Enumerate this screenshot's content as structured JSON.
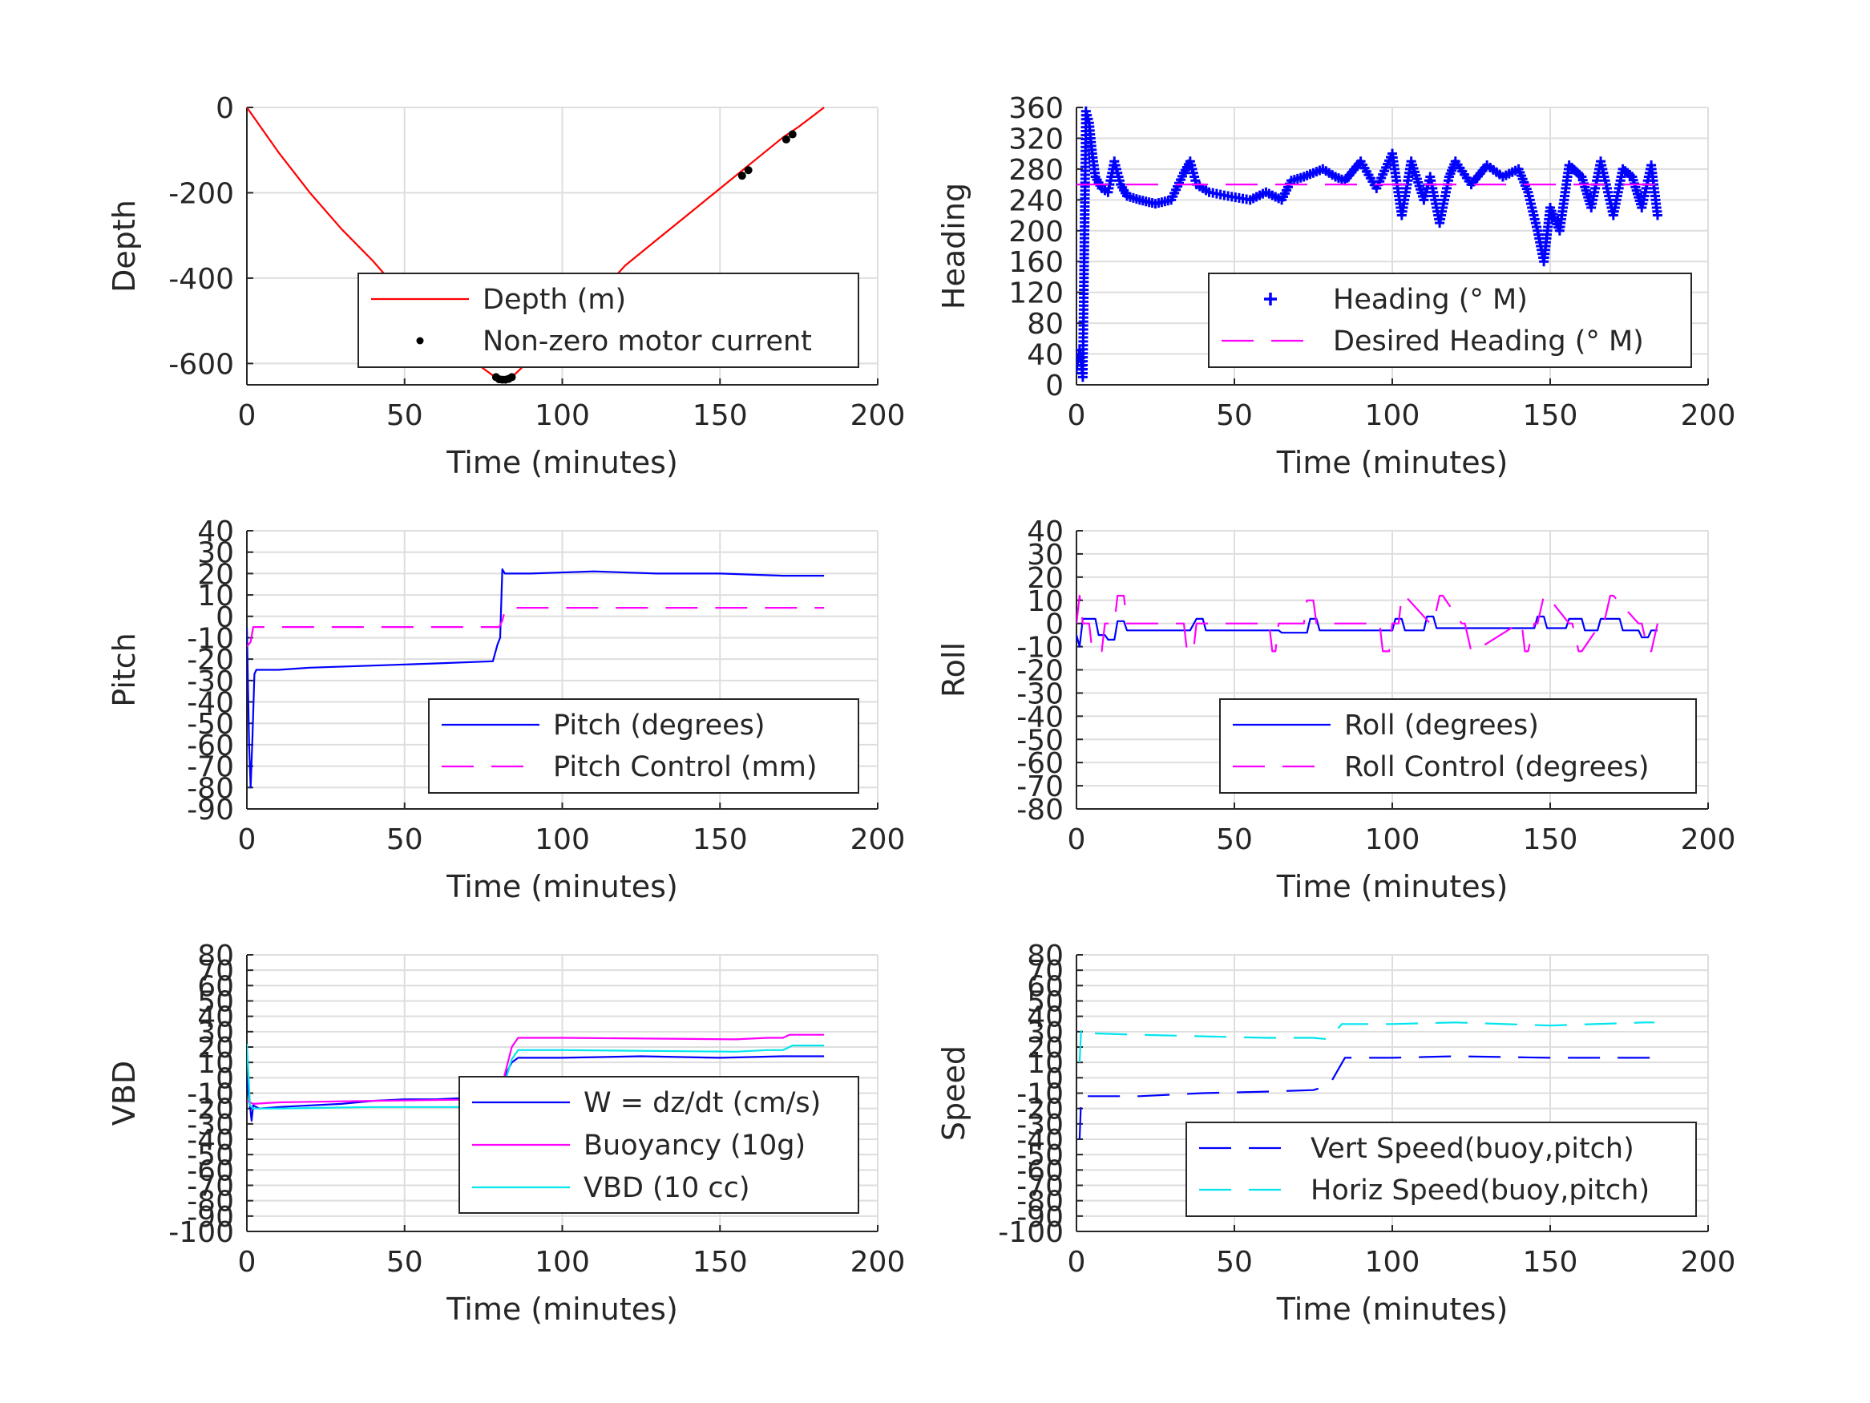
{
  "chart_data": [
    {
      "type": "line",
      "xlabel": "Time (minutes)",
      "ylabel": "Depth",
      "xlim": [
        0,
        200
      ],
      "ylim": [
        -650,
        0
      ],
      "xticks": [
        "0",
        "50",
        "100",
        "150",
        "200"
      ],
      "yticks": [
        "0",
        "-200",
        "-400",
        "-600"
      ],
      "ytick_values": [
        0,
        -200,
        -400,
        -600
      ],
      "grid": true,
      "legend_position": "bottom-right",
      "series": [
        {
          "name": "Depth (m)",
          "style": "solid",
          "color": "#ff0000",
          "x": [
            0,
            10,
            20,
            30,
            40,
            50,
            60,
            70,
            78,
            80,
            82,
            84,
            90,
            100,
            110,
            120,
            130,
            140,
            150,
            160,
            170,
            175,
            183
          ],
          "y": [
            0,
            -105,
            -200,
            -285,
            -360,
            -445,
            -520,
            -585,
            -628,
            -638,
            -638,
            -632,
            -590,
            -520,
            -450,
            -370,
            -310,
            -250,
            -190,
            -130,
            -70,
            -45,
            0
          ]
        },
        {
          "name": "Non-zero motor current",
          "style": "dots",
          "color": "#000000",
          "x": [
            79,
            80,
            81,
            82,
            83,
            84,
            157,
            159,
            171,
            173
          ],
          "y": [
            -632,
            -637,
            -638,
            -638,
            -636,
            -632,
            -160,
            -147,
            -75,
            -63
          ]
        }
      ]
    },
    {
      "type": "scatter",
      "xlabel": "Time (minutes)",
      "ylabel": "Heading",
      "xlim": [
        0,
        200
      ],
      "ylim": [
        0,
        360
      ],
      "xticks": [
        "0",
        "50",
        "100",
        "150",
        "200"
      ],
      "yticks": [
        "0",
        "40",
        "80",
        "120",
        "160",
        "200",
        "240",
        "280",
        "320",
        "360"
      ],
      "ytick_values": [
        0,
        40,
        80,
        120,
        160,
        200,
        240,
        280,
        320,
        360
      ],
      "grid": true,
      "legend_position": "bottom-right",
      "series": [
        {
          "name": "Heading (° M)",
          "style": "markers",
          "color": "#0000ff",
          "x": [
            0,
            1,
            2,
            3,
            4,
            5,
            6,
            8,
            10,
            12,
            14,
            16,
            20,
            25,
            30,
            34,
            36,
            38,
            42,
            48,
            55,
            60,
            65,
            68,
            72,
            78,
            82,
            85,
            90,
            95,
            100,
            103,
            106,
            110,
            112,
            115,
            118,
            120,
            125,
            130,
            135,
            140,
            143,
            146,
            148,
            150,
            153,
            156,
            160,
            163,
            166,
            170,
            173,
            176,
            179,
            182,
            184
          ],
          "y": [
            20,
            45,
            10,
            355,
            340,
            300,
            270,
            255,
            250,
            290,
            260,
            245,
            240,
            235,
            240,
            275,
            290,
            260,
            250,
            245,
            240,
            250,
            240,
            265,
            270,
            280,
            270,
            265,
            290,
            255,
            300,
            220,
            290,
            240,
            270,
            210,
            270,
            290,
            260,
            285,
            270,
            280,
            250,
            200,
            160,
            230,
            200,
            285,
            270,
            230,
            290,
            220,
            280,
            270,
            230,
            285,
            220
          ]
        },
        {
          "name": "Desired Heading (° M)",
          "style": "dashed",
          "color": "#ff00ff",
          "x": [
            0,
            185
          ],
          "y": [
            260,
            260
          ]
        }
      ]
    },
    {
      "type": "line",
      "xlabel": "Time (minutes)",
      "ylabel": "Pitch",
      "xlim": [
        0,
        200
      ],
      "ylim": [
        -90,
        40
      ],
      "xticks": [
        "0",
        "50",
        "100",
        "150",
        "200"
      ],
      "yticks": [
        "40",
        "30",
        "20",
        "10",
        "0",
        "-10",
        "-20",
        "-30",
        "-40",
        "-50",
        "-60",
        "-70",
        "-80",
        "-90"
      ],
      "ytick_values": [
        40,
        30,
        20,
        10,
        0,
        -10,
        -20,
        -30,
        -40,
        -50,
        -60,
        -70,
        -80,
        -90
      ],
      "grid": true,
      "legend_position": "bottom-right",
      "series": [
        {
          "name": "Pitch (degrees)",
          "style": "solid",
          "color": "#0000ff",
          "x": [
            0,
            0.7,
            1.2,
            1.8,
            2.4,
            3,
            10,
            20,
            40,
            60,
            78,
            79.5,
            80.3,
            81,
            81.8,
            90,
            110,
            130,
            150,
            170,
            183
          ],
          "y": [
            -5,
            -60,
            -80,
            -55,
            -27,
            -25,
            -25,
            -24,
            -23,
            -22,
            -21,
            -13,
            -10,
            22,
            20,
            20,
            21,
            20,
            20,
            19,
            19
          ]
        },
        {
          "name": "Pitch Control (mm)",
          "style": "dashed",
          "color": "#ff00ff",
          "x": [
            0,
            1.2,
            2,
            3,
            80,
            81,
            82,
            183
          ],
          "y": [
            -14,
            -12,
            -5,
            -5,
            -5,
            -2,
            4,
            4
          ]
        }
      ]
    },
    {
      "type": "line",
      "xlabel": "Time (minutes)",
      "ylabel": "Roll",
      "xlim": [
        0,
        200
      ],
      "ylim": [
        -80,
        40
      ],
      "xticks": [
        "0",
        "50",
        "100",
        "150",
        "200"
      ],
      "yticks": [
        "40",
        "30",
        "20",
        "10",
        "0",
        "-10",
        "-20",
        "-30",
        "-40",
        "-50",
        "-60",
        "-70",
        "-80"
      ],
      "ytick_values": [
        40,
        30,
        20,
        10,
        0,
        -10,
        -20,
        -30,
        -40,
        -50,
        -60,
        -70,
        -80
      ],
      "grid": true,
      "legend_position": "bottom-right",
      "series": [
        {
          "name": "Roll (degrees)",
          "style": "solid",
          "color": "#0000ff",
          "x": [
            0,
            1,
            2,
            6,
            7,
            9,
            10,
            12,
            13,
            15,
            16,
            36,
            38,
            40,
            41,
            64,
            65,
            73,
            74,
            76,
            77,
            100,
            101,
            103,
            104,
            110,
            111,
            113,
            114,
            120,
            121,
            130,
            140,
            145,
            146,
            148,
            149,
            155,
            156,
            160,
            161,
            165,
            166,
            172,
            173,
            178,
            179,
            181,
            182,
            184
          ],
          "y": [
            -5,
            -10,
            2,
            2,
            -5,
            -5,
            -7,
            -7,
            1,
            1,
            -3,
            -3,
            2,
            2,
            -3,
            -3,
            -4,
            -4,
            2,
            2,
            -3,
            -3,
            2,
            2,
            -3,
            -3,
            3,
            3,
            -2,
            -2,
            -2,
            -2,
            -2,
            -2,
            3,
            3,
            -2,
            -2,
            2,
            2,
            -3,
            -3,
            2,
            2,
            -3,
            -3,
            -6,
            -6,
            -3,
            -3
          ]
        },
        {
          "name": "Roll Control (degrees)",
          "style": "dashed",
          "color": "#ff00ff",
          "x": [
            0,
            1,
            2,
            4,
            5,
            8,
            9,
            12,
            13,
            15,
            16,
            34,
            35,
            37,
            38,
            61,
            62,
            63,
            64,
            72,
            73,
            75,
            76,
            96,
            97,
            99,
            100,
            102,
            103,
            104,
            112,
            113,
            115,
            116,
            122,
            123,
            125,
            126,
            140,
            141,
            142,
            143,
            145,
            146,
            148,
            149,
            156,
            157,
            159,
            160,
            166,
            167,
            169,
            170,
            178,
            179,
            181,
            182,
            184
          ],
          "y": [
            0,
            12,
            0,
            0,
            -12,
            -12,
            0,
            0,
            12,
            12,
            0,
            0,
            -12,
            -12,
            0,
            0,
            -12,
            -12,
            0,
            0,
            10,
            10,
            0,
            0,
            -12,
            -12,
            0,
            0,
            12,
            12,
            0,
            0,
            12,
            12,
            0,
            0,
            -12,
            -12,
            0,
            0,
            -12,
            -12,
            0,
            0,
            12,
            12,
            0,
            0,
            -12,
            -12,
            0,
            0,
            12,
            12,
            0,
            0,
            -12,
            -12,
            0
          ]
        }
      ]
    },
    {
      "type": "line",
      "xlabel": "Time (minutes)",
      "ylabel": "VBD",
      "xlim": [
        0,
        200
      ],
      "ylim": [
        -100,
        80
      ],
      "xticks": [
        "0",
        "50",
        "100",
        "150",
        "200"
      ],
      "yticks": [
        "80",
        "70",
        "60",
        "50",
        "40",
        "30",
        "20",
        "10",
        "0",
        "-10",
        "-20",
        "-30",
        "-40",
        "-50",
        "-60",
        "-70",
        "-80",
        "-90",
        "-100"
      ],
      "ytick_values": [
        80,
        70,
        60,
        50,
        40,
        30,
        20,
        10,
        0,
        -10,
        -20,
        -30,
        -40,
        -50,
        -60,
        -70,
        -80,
        -90,
        -100
      ],
      "grid": true,
      "legend_position": "bottom-right",
      "series": [
        {
          "name": "W = dz/dt (cm/s)",
          "style": "solid",
          "color": "#0000ff",
          "x": [
            0,
            0.8,
            1.5,
            2,
            4,
            10,
            20,
            30,
            40,
            50,
            60,
            70,
            78,
            80,
            82,
            84,
            86,
            100,
            125,
            150,
            170,
            183
          ],
          "y": [
            0,
            -15,
            -28,
            -18,
            -20,
            -19,
            -18,
            -17,
            -15,
            -14,
            -14,
            -13,
            -13,
            -8,
            2,
            10,
            13,
            13,
            14,
            13,
            14,
            14
          ]
        },
        {
          "name": "Buoyancy (10g)",
          "style": "solid",
          "color": "#ff00ff",
          "x": [
            0,
            2,
            10,
            40,
            78,
            80,
            84,
            86,
            100,
            155,
            165,
            170,
            172,
            183
          ],
          "y": [
            -15,
            -17,
            -16,
            -15,
            -14,
            -12,
            20,
            26,
            26,
            25,
            26,
            26,
            28,
            28
          ]
        },
        {
          "name": "VBD (10 cc)",
          "style": "solid",
          "color": "#00e5ee",
          "x": [
            0,
            0.4,
            1,
            2,
            10,
            40,
            78,
            80,
            84,
            86,
            100,
            155,
            165,
            170,
            173,
            183
          ],
          "y": [
            22,
            5,
            -18,
            -20,
            -20,
            -19,
            -19,
            -15,
            12,
            18,
            18,
            17,
            18,
            18,
            21,
            21
          ]
        }
      ]
    },
    {
      "type": "line",
      "xlabel": "Time (minutes)",
      "ylabel": "Speed",
      "xlim": [
        0,
        200
      ],
      "ylim": [
        -100,
        80
      ],
      "xticks": [
        "0",
        "50",
        "100",
        "150",
        "200"
      ],
      "yticks": [
        "80",
        "70",
        "60",
        "50",
        "40",
        "30",
        "20",
        "10",
        "0",
        "-10",
        "-20",
        "-30",
        "-40",
        "-50",
        "-60",
        "-70",
        "-80",
        "-90",
        "-100"
      ],
      "ytick_values": [
        80,
        70,
        60,
        50,
        40,
        30,
        20,
        10,
        0,
        -10,
        -20,
        -30,
        -40,
        -50,
        -60,
        -70,
        -80,
        -90,
        -100
      ],
      "grid": true,
      "legend_position": "bottom-right",
      "series": [
        {
          "name": "Vert Speed(buoy,pitch)",
          "style": "dashed",
          "color": "#0000ff",
          "x": [
            1,
            1.5,
            2,
            4,
            20,
            40,
            60,
            75,
            80,
            85,
            100,
            120,
            150,
            183
          ],
          "y": [
            -40,
            -12,
            -12,
            -12,
            -12,
            -10,
            -9,
            -8,
            -5,
            13,
            13,
            14,
            13,
            13
          ]
        },
        {
          "name": "Horiz Speed(buoy,pitch)",
          "style": "dashed",
          "color": "#00e5ee",
          "x": [
            1,
            1.5,
            2,
            4,
            20,
            40,
            60,
            75,
            80,
            84,
            100,
            120,
            150,
            180,
            183
          ],
          "y": [
            10,
            32,
            30,
            29,
            28,
            27,
            26,
            26,
            25,
            35,
            35,
            36,
            34,
            36,
            36
          ]
        }
      ]
    }
  ]
}
